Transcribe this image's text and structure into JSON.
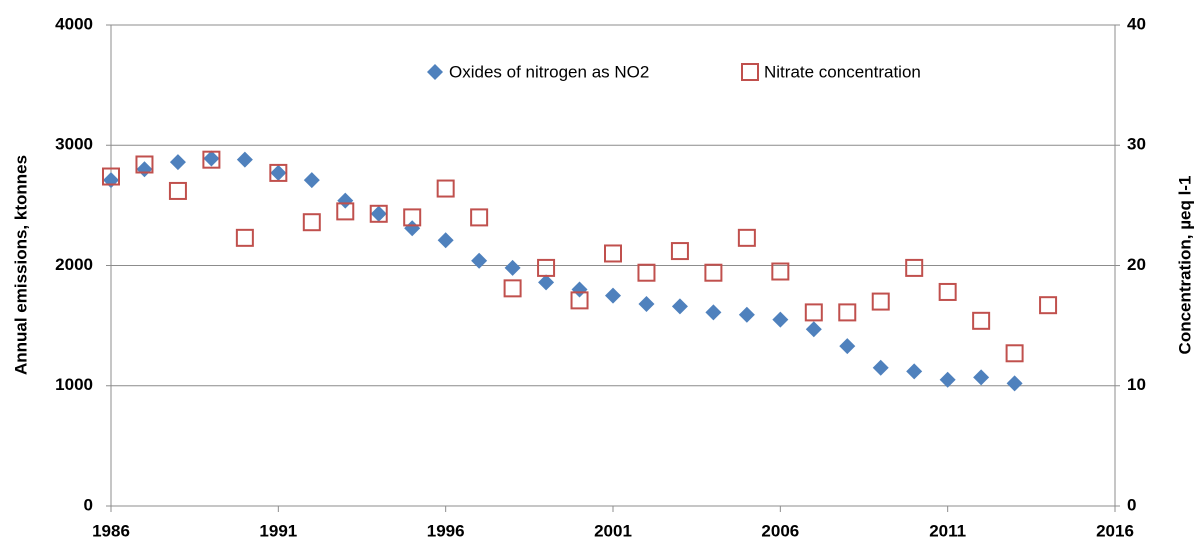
{
  "chart_data": {
    "type": "scatter",
    "y_label": "Annual emissions, ktonnes",
    "y2_label": "Concentration, µeq l-1",
    "xlim": [
      1986,
      2016
    ],
    "xticks": [
      1986,
      1991,
      1996,
      2001,
      2006,
      2011,
      2016
    ],
    "ylim": [
      0,
      4000
    ],
    "yticks": [
      0,
      1000,
      2000,
      3000,
      4000
    ],
    "y2lim": [
      0,
      40
    ],
    "y2ticks": [
      0,
      10,
      20,
      30,
      40
    ],
    "grid": true,
    "legend": "top",
    "series": [
      {
        "name": "Oxides of nitrogen as NO2",
        "color": "#4f81bd",
        "marker": "diamond",
        "x": [
          1986,
          1987,
          1988,
          1989,
          1990,
          1991,
          1992,
          1993,
          1994,
          1995,
          1996,
          1997,
          1998,
          1999,
          2000,
          2001,
          2002,
          2003,
          2004,
          2005,
          2006,
          2007,
          2008,
          2009,
          2010,
          2011,
          2012,
          2013
        ],
        "values": [
          2710,
          2800,
          2860,
          2890,
          2880,
          2770,
          2710,
          2540,
          2430,
          2310,
          2210,
          2040,
          1980,
          1860,
          1800,
          1750,
          1680,
          1660,
          1610,
          1590,
          1550,
          1470,
          1330,
          1150,
          1120,
          1050,
          1070,
          1020
        ]
      },
      {
        "name": "Nitrate concentration",
        "color": "#c0504d",
        "marker": "square",
        "axis": "y2",
        "x": [
          1986,
          1987,
          1988,
          1989,
          1990,
          1991,
          1992,
          1993,
          1994,
          1995,
          1996,
          1997,
          1998,
          1999,
          2000,
          2001,
          2002,
          2003,
          2004,
          2005,
          2006,
          2007,
          2008,
          2009,
          2010,
          2011,
          2012,
          2013,
          2014
        ],
        "values": [
          27.4,
          28.4,
          26.2,
          28.8,
          22.3,
          27.7,
          23.6,
          24.5,
          24.3,
          24.0,
          26.4,
          24.0,
          18.1,
          19.8,
          17.1,
          21.0,
          19.4,
          21.2,
          19.4,
          22.3,
          19.5,
          16.1,
          16.1,
          17.0,
          19.8,
          17.8,
          15.4,
          12.7,
          16.7
        ]
      }
    ]
  }
}
